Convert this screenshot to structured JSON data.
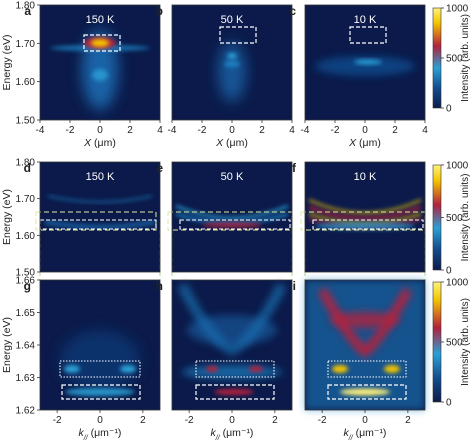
{
  "chart_data": {
    "type": "heatmap",
    "colormap": [
      "#0b1a4a",
      "#114c8f",
      "#2aa0d6",
      "#b3203c",
      "#f2c400",
      "#fff27a"
    ],
    "colorbar": {
      "label": "Intensity (arb. units)",
      "range": [
        0,
        1000
      ],
      "ticks": [
        "1000",
        "500",
        "0"
      ]
    },
    "rows": [
      {
        "panels": [
          {
            "letter": "a",
            "temperature": "150 K"
          },
          {
            "letter": "b",
            "temperature": "50 K"
          },
          {
            "letter": "c",
            "temperature": "10 K"
          }
        ],
        "ylabel": "Energy (eV)",
        "ylim": [
          1.5,
          1.8
        ],
        "yticks": [
          "1.80",
          "1.70",
          "1.60",
          "1.50"
        ],
        "xlabel_main": "X",
        "xlabel_unit": " (μm)",
        "xlim": [
          -4,
          4
        ],
        "xticks": [
          "-4",
          "-2",
          "0",
          "2",
          "4"
        ]
      },
      {
        "panels": [
          {
            "letter": "d",
            "temperature": "150 K"
          },
          {
            "letter": "e",
            "temperature": "50 K"
          },
          {
            "letter": "f",
            "temperature": "10 K"
          }
        ],
        "ylabel": "Energy (eV)",
        "ylim": [
          1.5,
          1.8
        ],
        "yticks": [
          "1.80",
          "1.70",
          "1.60",
          "1.50"
        ]
      },
      {
        "panels": [
          {
            "letter": "g"
          },
          {
            "letter": "h"
          },
          {
            "letter": "i"
          }
        ],
        "ylabel": "Energy (eV)",
        "ylim": [
          1.62,
          1.66
        ],
        "yticks": [
          "1.66",
          "1.65",
          "1.64",
          "1.63",
          "1.62"
        ],
        "xlabel_main": "k",
        "xlabel_sub": "//",
        "xlabel_unit": " (μm⁻¹)",
        "xlim": [
          -2.8,
          2.8
        ],
        "xticks": [
          "-2",
          "0",
          "2"
        ]
      }
    ]
  }
}
